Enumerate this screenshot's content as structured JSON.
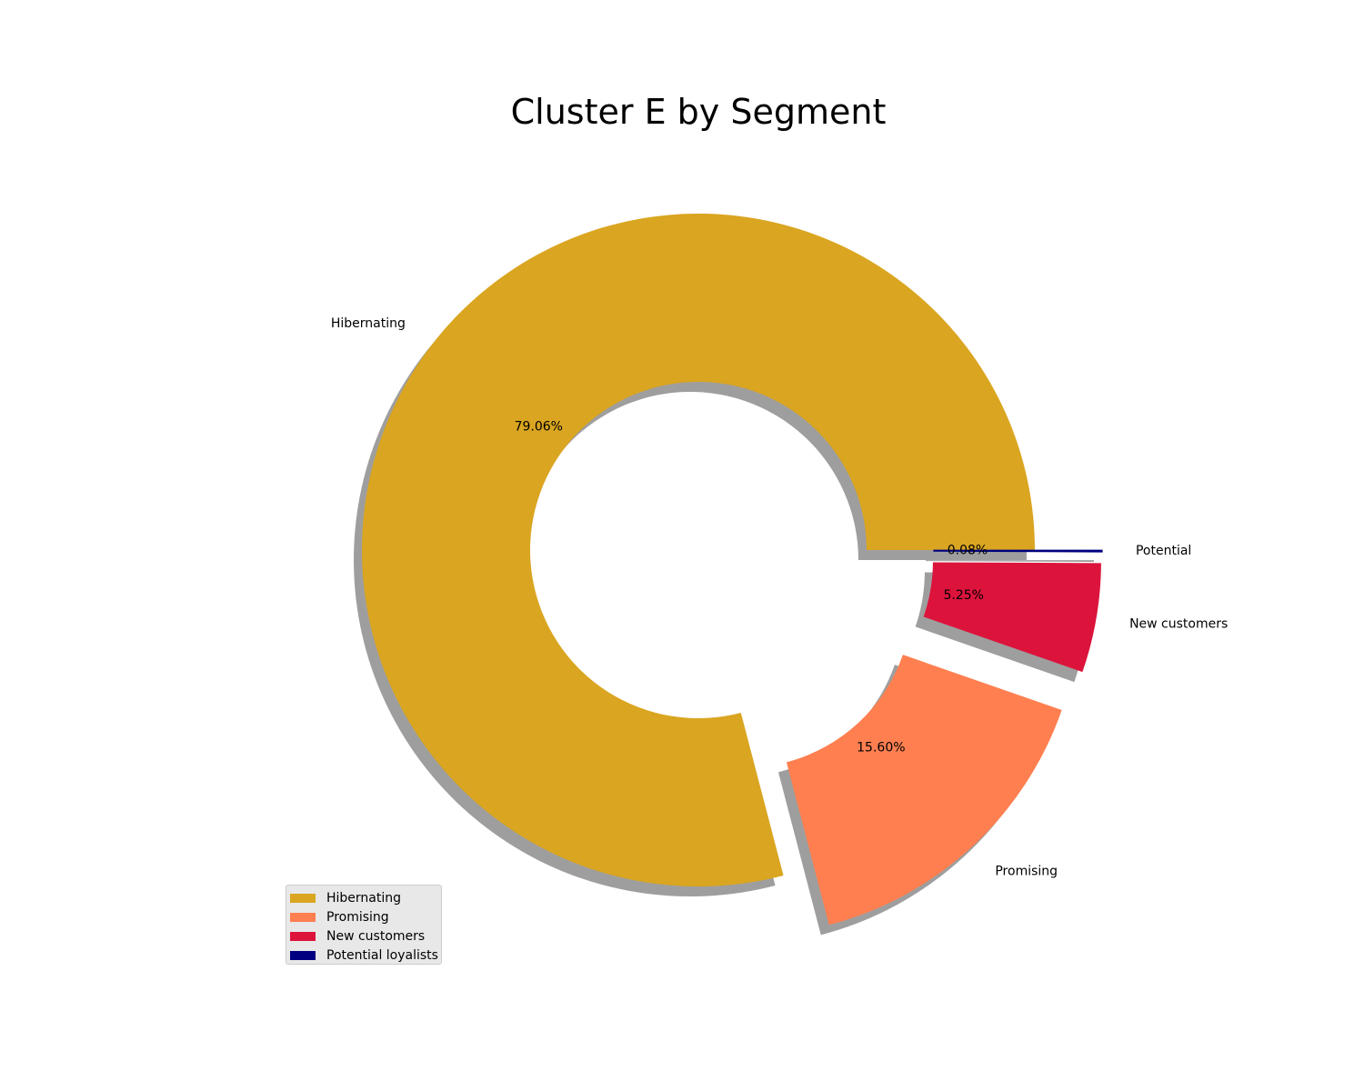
{
  "chart_data": {
    "type": "pie",
    "title": "Cluster E by Segment",
    "donut": true,
    "shadow": true,
    "categories": [
      "Hibernating",
      "Promising",
      "New customers",
      "Potential loyalists"
    ],
    "values": [
      79.06,
      15.6,
      5.25,
      0.08
    ],
    "pct_labels": [
      "79.06%",
      "15.60%",
      "5.25%",
      "0.08%"
    ],
    "slice_labels": [
      "Hibernating",
      "Promising",
      "New customers",
      "Potential"
    ],
    "colors": [
      "#DAA520",
      "#FF7F50",
      "#DC143C",
      "#000080"
    ],
    "exploded": [
      false,
      true,
      true,
      true
    ],
    "start_angle_deg": 0,
    "direction": "counterclockwise",
    "legend": {
      "position": "lower-left",
      "items": [
        "Hibernating",
        "Promising",
        "New customers",
        "Potential loyalists"
      ]
    }
  }
}
